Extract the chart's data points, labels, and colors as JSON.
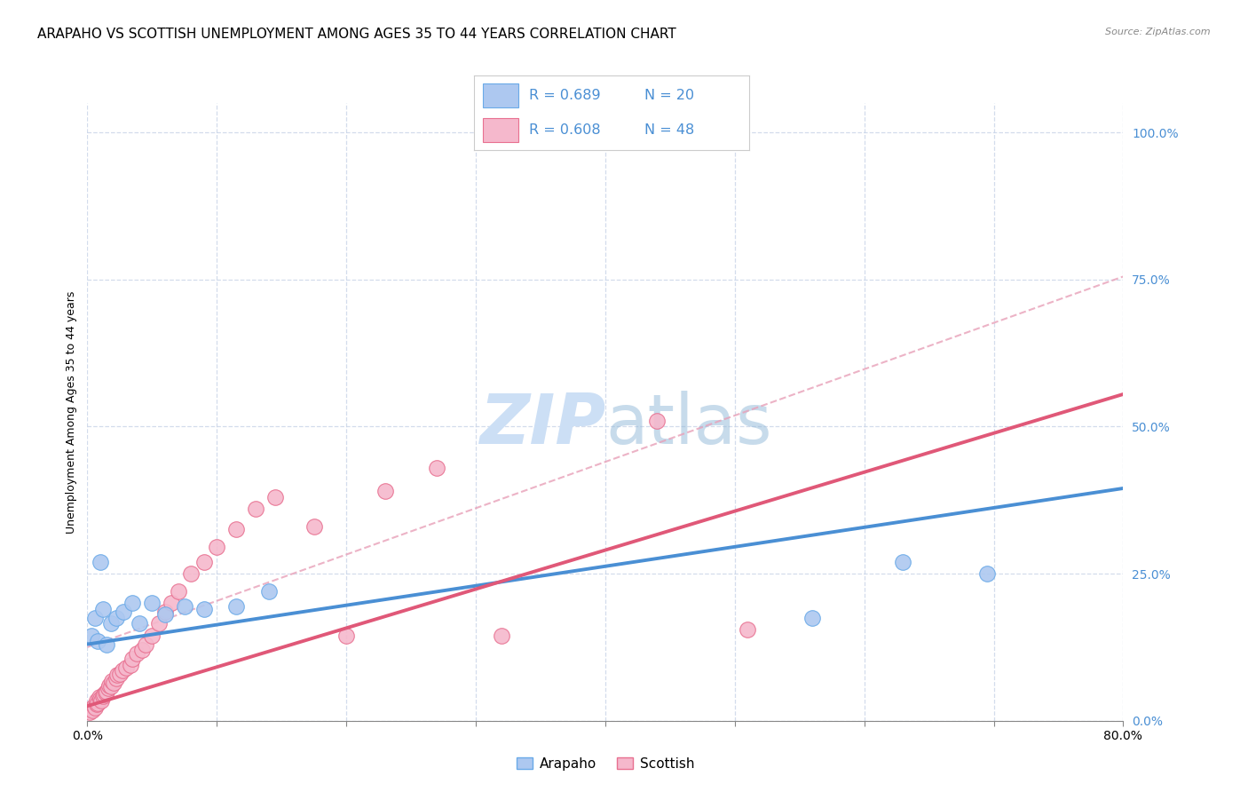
{
  "title": "ARAPAHO VS SCOTTISH UNEMPLOYMENT AMONG AGES 35 TO 44 YEARS CORRELATION CHART",
  "source": "Source: ZipAtlas.com",
  "ylabel": "Unemployment Among Ages 35 to 44 years",
  "xlim": [
    0.0,
    0.8
  ],
  "ylim": [
    0.0,
    1.05
  ],
  "yticks": [
    0.0,
    0.25,
    0.5,
    0.75,
    1.0
  ],
  "ytick_labels": [
    "0.0%",
    "25.0%",
    "50.0%",
    "75.0%",
    "100.0%"
  ],
  "xticks": [
    0.0,
    0.1,
    0.2,
    0.3,
    0.4,
    0.5,
    0.6,
    0.7,
    0.8
  ],
  "arapaho_R": 0.689,
  "arapaho_N": 20,
  "scottish_R": 0.608,
  "scottish_N": 48,
  "arapaho_color": "#adc8f0",
  "arapaho_edge_color": "#6aaae8",
  "arapaho_line_color": "#4a8fd4",
  "scottish_color": "#f5b8cc",
  "scottish_edge_color": "#e87090",
  "scottish_line_color": "#e05878",
  "dash_line_color": "#e8a0b8",
  "legend_text_color": "#4a8fd4",
  "legend_N_color": "#e05878",
  "watermark_color": "#ccdff5",
  "background_color": "#ffffff",
  "grid_color": "#c8d4e8",
  "title_fontsize": 11,
  "arapaho_x": [
    0.003,
    0.006,
    0.008,
    0.01,
    0.012,
    0.015,
    0.018,
    0.022,
    0.028,
    0.035,
    0.04,
    0.05,
    0.06,
    0.075,
    0.09,
    0.115,
    0.14,
    0.56,
    0.63,
    0.695
  ],
  "arapaho_y": [
    0.145,
    0.175,
    0.135,
    0.27,
    0.19,
    0.13,
    0.165,
    0.175,
    0.185,
    0.2,
    0.165,
    0.2,
    0.18,
    0.195,
    0.19,
    0.195,
    0.22,
    0.175,
    0.27,
    0.25
  ],
  "scottish_x": [
    0.002,
    0.003,
    0.004,
    0.005,
    0.006,
    0.007,
    0.007,
    0.008,
    0.009,
    0.01,
    0.011,
    0.012,
    0.013,
    0.014,
    0.015,
    0.016,
    0.017,
    0.018,
    0.019,
    0.02,
    0.022,
    0.023,
    0.025,
    0.027,
    0.03,
    0.033,
    0.035,
    0.038,
    0.042,
    0.045,
    0.05,
    0.055,
    0.06,
    0.065,
    0.07,
    0.08,
    0.09,
    0.1,
    0.115,
    0.13,
    0.145,
    0.175,
    0.2,
    0.23,
    0.27,
    0.32,
    0.44,
    0.51
  ],
  "scottish_y": [
    0.015,
    0.02,
    0.018,
    0.025,
    0.022,
    0.028,
    0.035,
    0.03,
    0.04,
    0.038,
    0.035,
    0.042,
    0.045,
    0.048,
    0.05,
    0.055,
    0.06,
    0.058,
    0.068,
    0.065,
    0.072,
    0.078,
    0.08,
    0.085,
    0.09,
    0.095,
    0.105,
    0.115,
    0.12,
    0.13,
    0.145,
    0.165,
    0.185,
    0.2,
    0.22,
    0.25,
    0.27,
    0.295,
    0.325,
    0.36,
    0.38,
    0.33,
    0.145,
    0.39,
    0.43,
    0.145,
    0.51,
    0.155
  ],
  "arapaho_trend": [
    0.0,
    0.8,
    0.13,
    0.395
  ],
  "scottish_trend": [
    0.0,
    0.8,
    0.025,
    0.555
  ],
  "ref_dash": [
    0.0,
    0.8,
    0.125,
    0.755
  ]
}
